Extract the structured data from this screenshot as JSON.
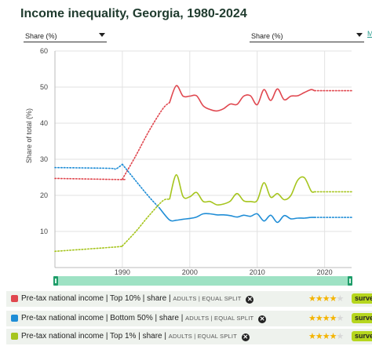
{
  "title": "Income inequality, Georgia, 1980-2024",
  "controls": {
    "left_select": "Share (%)",
    "right_select": "Share (%)",
    "link": "M"
  },
  "chart_data": {
    "type": "line",
    "title": "Income inequality, Georgia, 1980-2024",
    "xlabel": "",
    "ylabel": "Share of total (%)",
    "xlim": [
      1980,
      2024
    ],
    "ylim": [
      0,
      60
    ],
    "yticks": [
      10,
      20,
      30,
      40,
      50,
      60
    ],
    "xticks": [
      1990,
      2000,
      2010,
      2020
    ],
    "grid": true,
    "series": [
      {
        "name": "Pre-tax national income | Top 10% | share",
        "color": "#e0474f",
        "estimated_segments": [
          [
            [
              1980,
              24.7
            ],
            [
              1989.5,
              24.4
            ],
            [
              1990,
              24.5
            ]
          ],
          [
            [
              1990,
              24.5
            ],
            [
              1992,
              31
            ],
            [
              1994,
              38
            ],
            [
              1996,
              44
            ],
            [
              1997,
              45.7
            ]
          ],
          [
            [
              2018.5,
              49
            ],
            [
              2024,
              49
            ]
          ]
        ],
        "solid": [
          [
            1997,
            45.7
          ],
          [
            1998,
            50.4
          ],
          [
            1999,
            47.5
          ],
          [
            2000,
            47.5
          ],
          [
            2001,
            47.6
          ],
          [
            2002,
            44.8
          ],
          [
            2003,
            43.8
          ],
          [
            2004,
            43.4
          ],
          [
            2005,
            44.0
          ],
          [
            2006,
            45.3
          ],
          [
            2007,
            45.2
          ],
          [
            2008,
            47.5
          ],
          [
            2009,
            47.6
          ],
          [
            2010,
            45.1
          ],
          [
            2011,
            49.3
          ],
          [
            2012,
            46.3
          ],
          [
            2013,
            49.5
          ],
          [
            2014,
            46.5
          ],
          [
            2015,
            47.5
          ],
          [
            2016,
            47.6
          ],
          [
            2017,
            48.5
          ],
          [
            2018,
            49.3
          ],
          [
            2018.5,
            49.0
          ]
        ]
      },
      {
        "name": "Pre-tax national income | Bottom 50% | share",
        "color": "#1f8dd6",
        "estimated_segments": [
          [
            [
              1980,
              27.7
            ],
            [
              1988,
              27.5
            ],
            [
              1989,
              27.3
            ],
            [
              1990,
              28.6
            ]
          ],
          [
            [
              1990,
              28.6
            ],
            [
              1992,
              24
            ],
            [
              1994,
              19.5
            ],
            [
              1995.5,
              16.5
            ]
          ],
          [
            [
              2018.5,
              13.9
            ],
            [
              2024,
              13.9
            ]
          ]
        ],
        "solid": [
          [
            1995.5,
            16.5
          ],
          [
            1997,
            13.2
          ],
          [
            1998,
            13.1
          ],
          [
            1999,
            13.4
          ],
          [
            2000,
            13.6
          ],
          [
            2001,
            14.0
          ],
          [
            2002,
            14.9
          ],
          [
            2003,
            14.9
          ],
          [
            2004,
            14.6
          ],
          [
            2005,
            14.6
          ],
          [
            2006,
            14.4
          ],
          [
            2007,
            14.0
          ],
          [
            2008,
            14.5
          ],
          [
            2009,
            14.2
          ],
          [
            2010,
            14.9
          ],
          [
            2011,
            12.9
          ],
          [
            2012,
            14.5
          ],
          [
            2013,
            12.5
          ],
          [
            2014,
            14.4
          ],
          [
            2015,
            13.5
          ],
          [
            2016,
            13.7
          ],
          [
            2017,
            13.7
          ],
          [
            2018,
            13.9
          ],
          [
            2018.5,
            13.9
          ]
        ]
      },
      {
        "name": "Pre-tax national income | Top 1% | share",
        "color": "#a6c51e",
        "estimated_segments": [
          [
            [
              1980,
              4.5
            ],
            [
              1989,
              5.7
            ],
            [
              1990,
              6.0
            ]
          ],
          [
            [
              1990,
              6.0
            ],
            [
              1992,
              10
            ],
            [
              1994,
              14.5
            ],
            [
              1996,
              18.5
            ],
            [
              1997,
              18.9
            ]
          ],
          [
            [
              2018.5,
              21.0
            ],
            [
              2024,
              21.0
            ]
          ]
        ],
        "solid": [
          [
            1997,
            18.9
          ],
          [
            1998,
            25.7
          ],
          [
            1999,
            19.7
          ],
          [
            2000,
            19.6
          ],
          [
            2001,
            20.8
          ],
          [
            2002,
            18.3
          ],
          [
            2003,
            18.3
          ],
          [
            2004,
            17.4
          ],
          [
            2005,
            17.6
          ],
          [
            2006,
            18.4
          ],
          [
            2007,
            20.5
          ],
          [
            2008,
            18.5
          ],
          [
            2009,
            18.3
          ],
          [
            2010,
            18.6
          ],
          [
            2011,
            23.5
          ],
          [
            2012,
            19.5
          ],
          [
            2013,
            20.5
          ],
          [
            2014,
            18.8
          ],
          [
            2015,
            20.0
          ],
          [
            2016,
            24.2
          ],
          [
            2017,
            24.9
          ],
          [
            2018,
            21.2
          ],
          [
            2018.5,
            21.0
          ]
        ]
      }
    ]
  },
  "legend": [
    {
      "color": "#e0474f",
      "main": "Pre-tax national income",
      "group": "Top 10%",
      "measure": "share",
      "tags": "ADULTS | EQUAL SPLIT",
      "stars": 4,
      "badge": "surveys"
    },
    {
      "color": "#1f8dd6",
      "main": "Pre-tax national income",
      "group": "Bottom 50%",
      "measure": "share",
      "tags": "ADULTS | EQUAL SPLIT",
      "stars": 4,
      "badge": "surveys"
    },
    {
      "color": "#a6c51e",
      "main": "Pre-tax national income",
      "group": "Top 1%",
      "measure": "share",
      "tags": "ADULTS | EQUAL SPLIT",
      "stars": 4,
      "badge": "surveys"
    }
  ]
}
